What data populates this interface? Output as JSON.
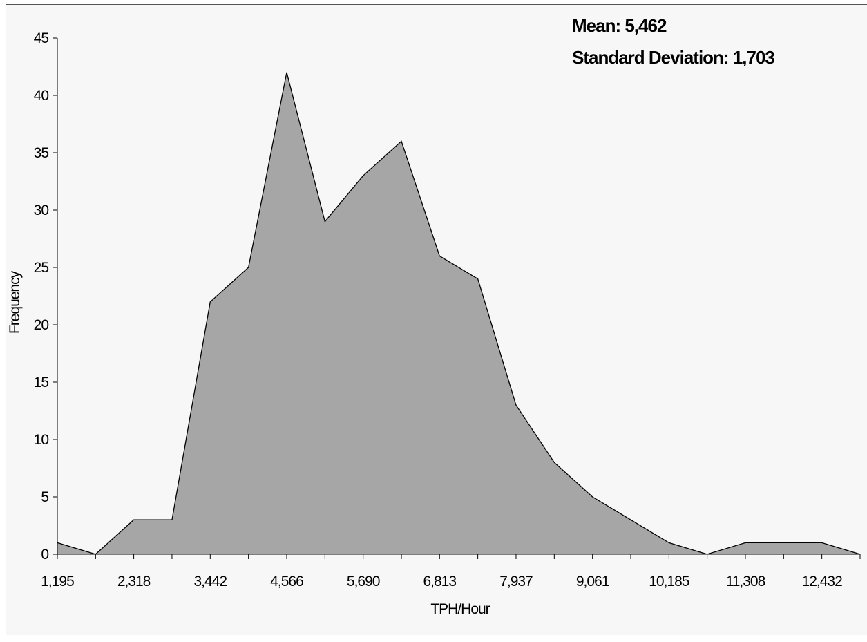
{
  "chart_data": {
    "type": "area",
    "title": "",
    "xlabel": "TPH/Hour",
    "ylabel": "Frequency",
    "ylim": [
      0,
      45
    ],
    "yticks": [
      0,
      5,
      10,
      15,
      20,
      25,
      30,
      35,
      40,
      45
    ],
    "xtick_labels": [
      "1,195",
      "2,318",
      "3,442",
      "4,566",
      "5,690",
      "6,813",
      "7,937",
      "9,061",
      "10,185",
      "11,308",
      "12,432"
    ],
    "x": [
      1195,
      1757,
      2318,
      2880,
      3442,
      4004,
      4566,
      5128,
      5690,
      6252,
      6813,
      7375,
      7937,
      8499,
      9061,
      9623,
      10185,
      10746,
      11308,
      11870,
      12432,
      12994
    ],
    "values": [
      1,
      0,
      3,
      3,
      22,
      25,
      42,
      29,
      33,
      36,
      26,
      24,
      13,
      8,
      5,
      3,
      1,
      0,
      1,
      1,
      1,
      0
    ],
    "grid": false,
    "fill_color": "#a6a6a6",
    "line_color": "#000000",
    "annotations": [
      "Mean: 5,462",
      "Standard Deviation: 1,703"
    ]
  },
  "stats": {
    "mean": "Mean: 5,462",
    "std": "Standard Deviation: 1,703"
  }
}
